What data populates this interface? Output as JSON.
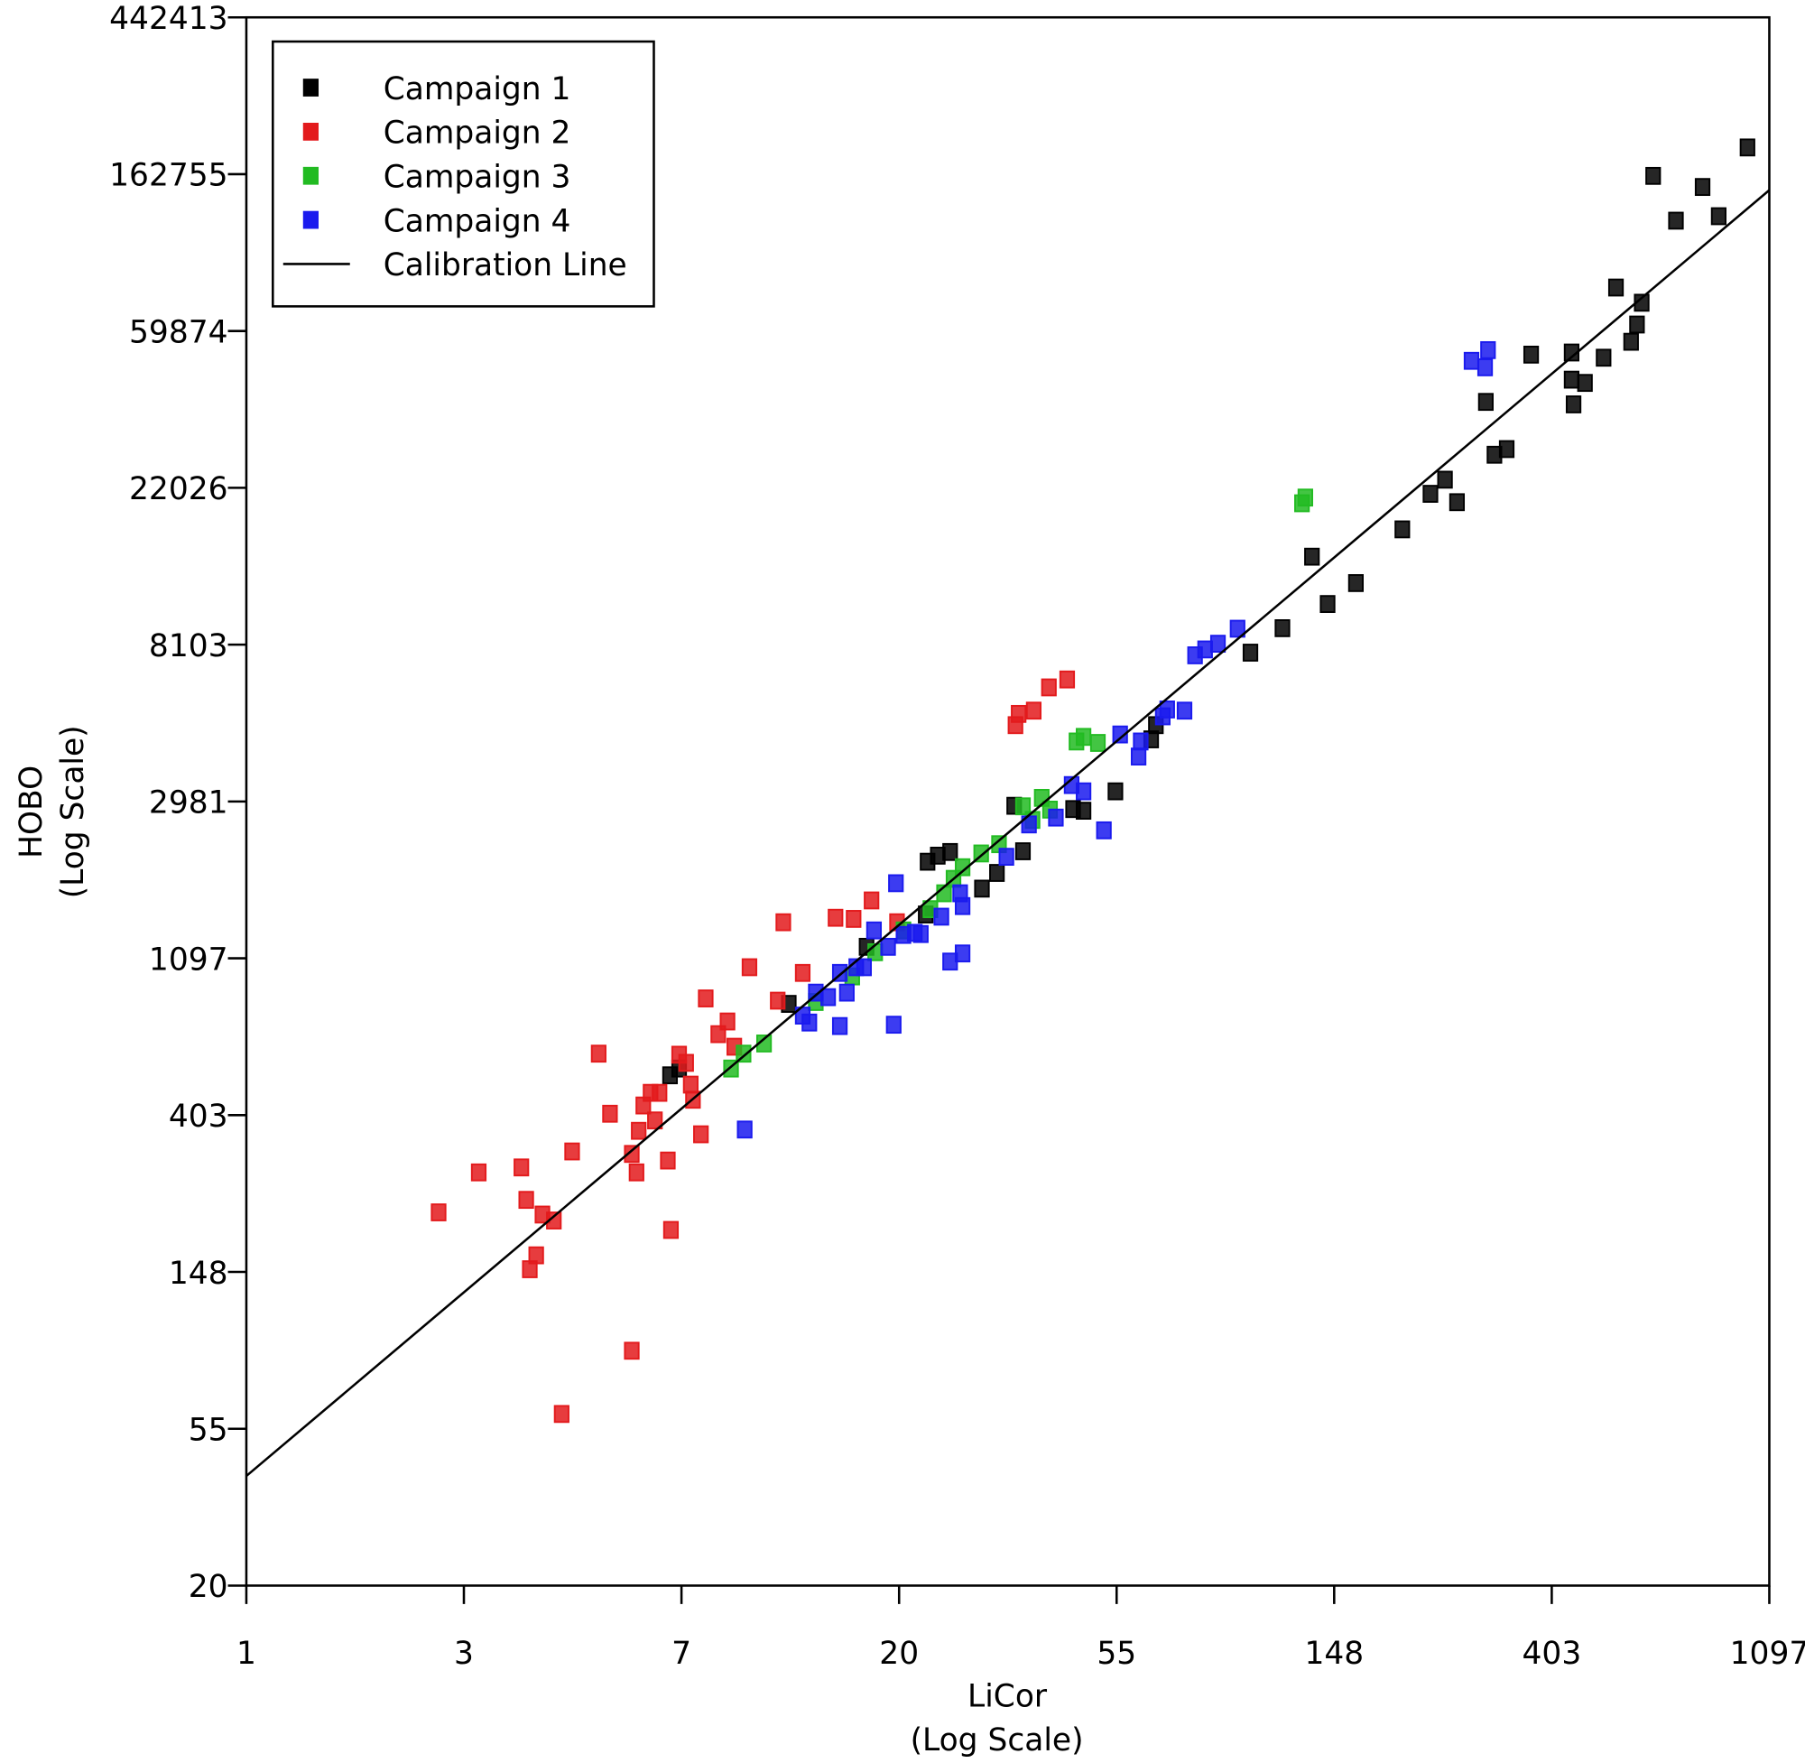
{
  "chart_data": {
    "type": "scatter",
    "x_label": [
      "LiCor",
      "(Log Scale)"
    ],
    "y_label": [
      "HOBO",
      "(Log Scale)"
    ],
    "xscale": "log",
    "yscale": "log",
    "legend": "upper left",
    "grid": false,
    "xlim": [
      1,
      1096.63
    ],
    "ylim": [
      20.0855,
      442413.39
    ],
    "xticks": [
      1,
      {
        "value": 2.718,
        "label": "3"
      },
      {
        "value": 7.389,
        "label": "7"
      },
      {
        "value": 20.09,
        "label": "20"
      },
      {
        "value": 54.6,
        "label": "55"
      },
      {
        "value": 148.41,
        "label": "148"
      },
      {
        "value": 403.43,
        "label": "403"
      },
      {
        "value": 1096.63,
        "label": "1097"
      }
    ],
    "yticks": [
      {
        "value": 20.0855,
        "label": "20"
      },
      {
        "value": 54.6,
        "label": "55"
      },
      {
        "value": 148.41,
        "label": "148"
      },
      {
        "value": 403.43,
        "label": "403"
      },
      {
        "value": 1096.63,
        "label": "1097"
      },
      {
        "value": 2980.96,
        "label": "2981"
      },
      {
        "value": 8103.08,
        "label": "8103"
      },
      {
        "value": 22026.47,
        "label": "22026"
      },
      {
        "value": 59874.14,
        "label": "59874"
      },
      {
        "value": 162754.79,
        "label": "162755"
      },
      {
        "value": 442413.39,
        "label": "442413"
      }
    ],
    "series": [
      {
        "name": "Campaign 1",
        "color": "#000000",
        "style": "marker",
        "x": [
          992,
          643,
          807,
          714,
          869,
          542,
          610,
          597,
          581,
          442,
          512,
          367,
          442,
          470,
          446,
          298,
          328,
          310,
          247,
          231,
          261,
          203,
          134,
          164,
          144,
          117,
          101,
          65.4,
          64.0,
          54.3,
          34.1,
          44.7,
          46.9,
          35.5,
          31.5,
          29.4,
          25.4,
          22.9,
          24.0,
          22.7,
          17.3,
          12.1,
          7.01,
          7.31
        ],
        "values": [
          193000,
          161000,
          150000,
          121000,
          124500,
          79000,
          71700,
          62400,
          55900,
          52200,
          50500,
          51500,
          43900,
          43000,
          37500,
          38100,
          28200,
          27200,
          23200,
          21200,
          20100,
          16900,
          14200,
          12000,
          10500,
          9000,
          7700,
          4850,
          4430,
          3180,
          2900,
          2840,
          2810,
          2170,
          1890,
          1710,
          2160,
          2030,
          2110,
          1450,
          1180,
          820,
          520,
          543
        ]
      },
      {
        "name": "Campaign 2",
        "color": "#e31a1c",
        "style": "marker",
        "x": [
          2.42,
          2.91,
          3.54,
          3.62,
          3.68,
          3.79,
          3.9,
          4.11,
          4.47,
          4.26,
          5.05,
          5.32,
          5.88,
          5.88,
          6.01,
          6.07,
          6.2,
          6.41,
          6.54,
          6.68,
          6.94,
          7.04,
          7.31,
          7.55,
          7.71,
          7.79,
          8.08,
          8.26,
          8.75,
          9.13,
          9.42,
          10.1,
          11.5,
          11.8,
          12.9,
          15.0,
          16.3,
          17.7,
          19.9,
          34.3,
          34.8,
          37.3,
          40.0,
          43.5
        ],
        "values": [
          217,
          280,
          289,
          235,
          151,
          165,
          214,
          206,
          320,
          60.0,
          597,
          407,
          89.8,
          315,
          280,
          365,
          429,
          465,
          390,
          465,
          302,
          194,
          593,
          563,
          490,
          445,
          357,
          849,
          676,
          733,
          624,
          1036,
          837,
          1380,
          999,
          1420,
          1410,
          1586,
          1380,
          4850,
          5210,
          5320,
          6170,
          6490
        ]
      },
      {
        "name": "Campaign 3",
        "color": "#22bb22",
        "style": "marker",
        "x": [
          9.28,
          9.83,
          10.8,
          13.7,
          16.2,
          18.0,
          20.5,
          23.2,
          24.7,
          25.8,
          26.9,
          29.3,
          31.8,
          35.5,
          37.1,
          38.7,
          40.2,
          45.4,
          46.9,
          50.1,
          128,
          130
        ],
        "values": [
          543,
          597,
          637,
          830,
          977,
          1140,
          1310,
          1500,
          1660,
          1820,
          1960,
          2140,
          2270,
          2890,
          2650,
          3050,
          2830,
          4370,
          4500,
          4330,
          19960,
          20700
        ]
      },
      {
        "name": "Campaign 4",
        "color": "#1a1aee",
        "style": "marker",
        "x": [
          9.88,
          12.9,
          13.3,
          13.7,
          14.5,
          15.3,
          15.8,
          15.3,
          16.5,
          17.1,
          17.9,
          19.1,
          19.6,
          19.8,
          20.5,
          21.6,
          22.2,
          24.4,
          25.4,
          26.9,
          26.6,
          26.9,
          32.9,
          36.5,
          41.3,
          44.4,
          46.9,
          51.5,
          55.5,
          60.4,
          61.0,
          67.5,
          68.9,
          74.6,
          78.3,
          82.0,
          87.0,
          95.2,
          279,
          297,
          301
        ],
        "values": [
          368,
          761,
          728,
          881,
          856,
          712,
          881,
          999,
          1036,
          1036,
          1310,
          1180,
          718,
          1770,
          1273,
          1290,
          1280,
          1430,
          1074,
          1131,
          1660,
          1530,
          2095,
          2575,
          2690,
          3310,
          3180,
          2480,
          4570,
          3970,
          4370,
          5130,
          5360,
          5320,
          7570,
          7860,
          8150,
          8970,
          49500,
          47500,
          53000
        ]
      },
      {
        "name": "Calibration Line",
        "color": "#000000",
        "style": "line",
        "x": [
          1,
          1096.63
        ],
        "values": [
          40.4,
          147000
        ]
      }
    ]
  }
}
